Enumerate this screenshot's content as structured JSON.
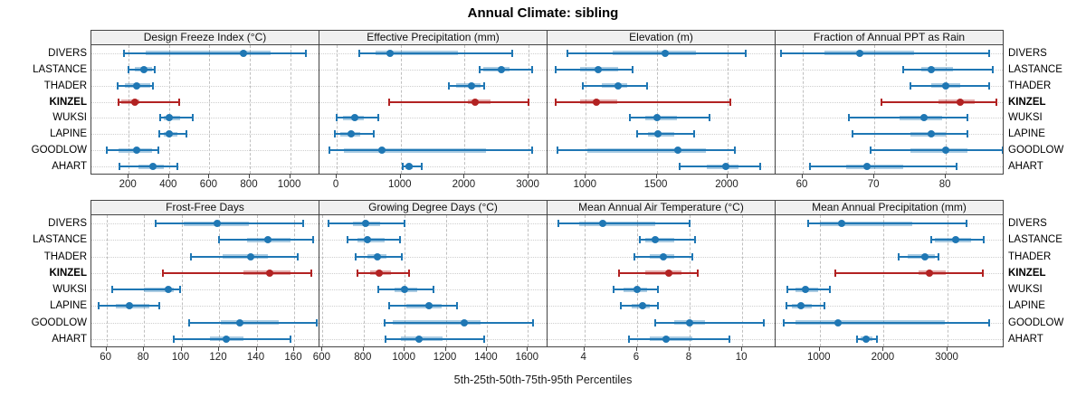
{
  "title": "Annual Climate: sibling",
  "caption": "5th-25th-50th-75th-95th Percentiles",
  "sites": [
    "DIVERS",
    "LASTANCE",
    "THADER",
    "KINZEL",
    "WUKSI",
    "LAPINE",
    "GOODLOW",
    "AHART"
  ],
  "highlight_site": "KINZEL",
  "colors": {
    "series_blue": "#1f77b4",
    "highlight_red": "#b22222",
    "band_blue": "rgba(31,119,180,0.38)",
    "band_red": "rgba(178,34,34,0.38)",
    "header_bg": "#f0f0f0",
    "panel_border": "#444444",
    "grid_vertical": "#bfbfbf",
    "grid_horizontal": "#cfcfcf"
  },
  "chart_data": {
    "type": "scatter",
    "variant": "lattice-style horizontal percentile interval plot, 2 rows x 4 panels; dot = median, band = 25th-75th, whisker with caps = 5th-95th",
    "percentiles": [
      5,
      25,
      50,
      75,
      95
    ],
    "categories": [
      "DIVERS",
      "LASTANCE",
      "THADER",
      "KINZEL",
      "WUKSI",
      "LAPINE",
      "GOODLOW",
      "AHART"
    ],
    "legend": "KINZEL highlighted in red, all other sites blue",
    "panels": [
      {
        "title": "Design Freeze Index (°C)",
        "ticks": [
          200,
          400,
          600,
          800,
          1000
        ],
        "domain": [
          15,
          1150
        ],
        "series": [
          [
            175,
            285,
            770,
            905,
            1080
          ],
          [
            200,
            230,
            275,
            315,
            330
          ],
          [
            145,
            180,
            240,
            305,
            320
          ],
          [
            150,
            165,
            230,
            255,
            450
          ],
          [
            355,
            375,
            400,
            455,
            515
          ],
          [
            350,
            375,
            400,
            440,
            485
          ],
          [
            90,
            150,
            240,
            315,
            345
          ],
          [
            155,
            250,
            320,
            375,
            440
          ]
        ]
      },
      {
        "title": "Effective Precipitation (mm)",
        "ticks": [
          0,
          1000,
          2000,
          3000
        ],
        "domain": [
          -270,
          3310
        ],
        "series": [
          [
            350,
            600,
            830,
            1900,
            2750
          ],
          [
            2230,
            2290,
            2580,
            2700,
            3050
          ],
          [
            1750,
            1870,
            2100,
            2250,
            2310
          ],
          [
            820,
            2050,
            2170,
            2400,
            3000
          ],
          [
            0,
            95,
            285,
            430,
            650
          ],
          [
            -30,
            60,
            225,
            370,
            580
          ],
          [
            -110,
            105,
            710,
            2340,
            3060
          ],
          [
            1025,
            1070,
            1130,
            1190,
            1330
          ]
        ]
      },
      {
        "title": "Elevation (m)",
        "ticks": [
          1000,
          1500,
          2000
        ],
        "domain": [
          730,
          2345
        ],
        "series": [
          [
            870,
            1190,
            1560,
            1780,
            2130
          ],
          [
            790,
            960,
            1090,
            1230,
            1330
          ],
          [
            980,
            1110,
            1225,
            1290,
            1430
          ],
          [
            790,
            960,
            1075,
            1220,
            2020
          ],
          [
            1310,
            1420,
            1500,
            1640,
            1870
          ],
          [
            1360,
            1440,
            1510,
            1625,
            1765
          ],
          [
            800,
            1010,
            1650,
            1850,
            2050
          ],
          [
            1660,
            1850,
            1990,
            2075,
            2230
          ]
        ]
      },
      {
        "title": "Fraction of Annual PPT as Rain",
        "ticks": [
          60,
          70,
          80
        ],
        "domain": [
          56.2,
          88.2
        ],
        "series": [
          [
            57,
            63,
            68,
            75.5,
            86
          ],
          [
            74,
            76.5,
            78,
            81,
            86.5
          ],
          [
            75,
            78,
            80,
            82,
            86
          ],
          [
            71,
            79,
            82,
            84,
            87
          ],
          [
            66.5,
            73.5,
            77,
            79.5,
            83
          ],
          [
            67,
            75,
            78,
            80,
            83
          ],
          [
            69.5,
            75,
            80,
            83,
            88
          ],
          [
            61,
            66,
            69,
            74,
            81.5
          ]
        ]
      },
      {
        "title": "Frost-Free Days",
        "ticks": [
          60,
          80,
          100,
          120,
          140,
          160
        ],
        "domain": [
          52,
          174
        ],
        "series": [
          [
            86,
            101,
            119,
            136,
            165
          ],
          [
            120,
            135,
            146,
            158,
            170
          ],
          [
            105,
            122,
            137,
            146,
            162
          ],
          [
            90,
            133,
            147,
            158,
            169
          ],
          [
            63,
            80,
            93,
            96,
            99
          ],
          [
            56,
            65,
            72,
            83,
            88
          ],
          [
            104,
            121,
            131,
            152,
            172
          ],
          [
            96,
            115,
            124,
            133,
            158
          ]
        ]
      },
      {
        "title": "Growing Degree Days (°C)",
        "ticks": [
          600,
          800,
          1000,
          1200,
          1400,
          1600
        ],
        "domain": [
          585,
          1700
        ],
        "series": [
          [
            630,
            750,
            810,
            880,
            1000
          ],
          [
            720,
            770,
            820,
            900,
            975
          ],
          [
            760,
            820,
            865,
            910,
            985
          ],
          [
            770,
            830,
            875,
            935,
            1020
          ],
          [
            870,
            950,
            1000,
            1060,
            1140
          ],
          [
            925,
            1010,
            1120,
            1180,
            1255
          ],
          [
            900,
            940,
            1290,
            1370,
            1625
          ],
          [
            905,
            980,
            1070,
            1185,
            1385
          ]
        ]
      },
      {
        "title": "Mean Annual Air Temperature (°C)",
        "ticks": [
          4,
          6,
          8,
          10
        ],
        "domain": [
          2.6,
          11.3
        ],
        "series": [
          [
            3.0,
            3.8,
            4.7,
            6.7,
            8.0
          ],
          [
            6.1,
            6.3,
            6.7,
            7.4,
            8.2
          ],
          [
            5.9,
            6.5,
            7.0,
            7.4,
            8.1
          ],
          [
            5.3,
            6.3,
            7.2,
            7.7,
            8.3
          ],
          [
            5.1,
            5.5,
            6.0,
            6.4,
            6.8
          ],
          [
            5.4,
            5.8,
            6.2,
            6.5,
            6.8
          ],
          [
            6.7,
            7.4,
            8.0,
            8.6,
            10.8
          ],
          [
            5.7,
            6.5,
            7.1,
            8.1,
            9.5
          ]
        ]
      },
      {
        "title": "Mean Annual Precipitation (mm)",
        "ticks": [
          1000,
          2000,
          3000
        ],
        "domain": [
          310,
          3890
        ],
        "series": [
          [
            820,
            1000,
            1340,
            2450,
            3300
          ],
          [
            2740,
            2800,
            3130,
            3370,
            3570
          ],
          [
            2230,
            2380,
            2650,
            2800,
            2860
          ],
          [
            1250,
            2550,
            2720,
            2970,
            3550
          ],
          [
            500,
            620,
            770,
            980,
            1160
          ],
          [
            480,
            560,
            700,
            870,
            1070
          ],
          [
            430,
            620,
            1290,
            2950,
            3650
          ],
          [
            1580,
            1640,
            1730,
            1820,
            1900
          ]
        ]
      }
    ]
  }
}
